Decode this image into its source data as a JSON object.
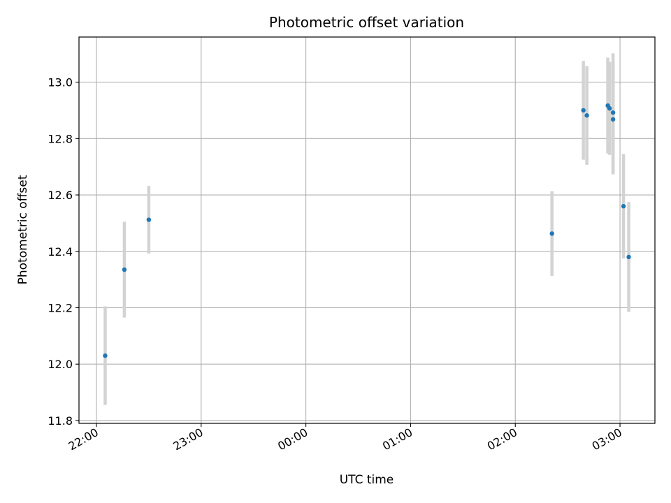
{
  "chart_data": {
    "type": "scatter",
    "title": "Photometric offset variation",
    "xlabel": "UTC time",
    "ylabel": "Photometric offset",
    "grid": true,
    "xlim": [
      "21:50",
      "03:20"
    ],
    "ylim": [
      11.79,
      13.16
    ],
    "x_ticks": [
      "22:00",
      "23:00",
      "00:00",
      "01:00",
      "02:00",
      "03:00"
    ],
    "y_ticks": [
      "11.8",
      "12.0",
      "12.2",
      "12.4",
      "12.6",
      "12.8",
      "13.0"
    ],
    "colors": {
      "point": "#1f77b4",
      "errorbar": "#d3d3d3",
      "grid": "#b0b0b0"
    },
    "points": [
      {
        "time": "22:05",
        "value": 12.03,
        "error": 0.175
      },
      {
        "time": "22:16",
        "value": 12.335,
        "error": 0.17
      },
      {
        "time": "22:30",
        "value": 12.512,
        "error": 0.12
      },
      {
        "time": "02:21",
        "value": 12.463,
        "error": 0.15
      },
      {
        "time": "02:39",
        "value": 12.9,
        "error": 0.175
      },
      {
        "time": "02:41",
        "value": 12.882,
        "error": 0.175
      },
      {
        "time": "02:53",
        "value": 12.917,
        "error": 0.17
      },
      {
        "time": "02:54",
        "value": 12.907,
        "error": 0.165
      },
      {
        "time": "02:56",
        "value": 12.892,
        "error": 0.21
      },
      {
        "time": "02:56",
        "value": 12.868,
        "error": 0.195
      },
      {
        "time": "03:02",
        "value": 12.56,
        "error": 0.185
      },
      {
        "time": "03:05",
        "value": 12.38,
        "error": 0.195
      }
    ]
  }
}
